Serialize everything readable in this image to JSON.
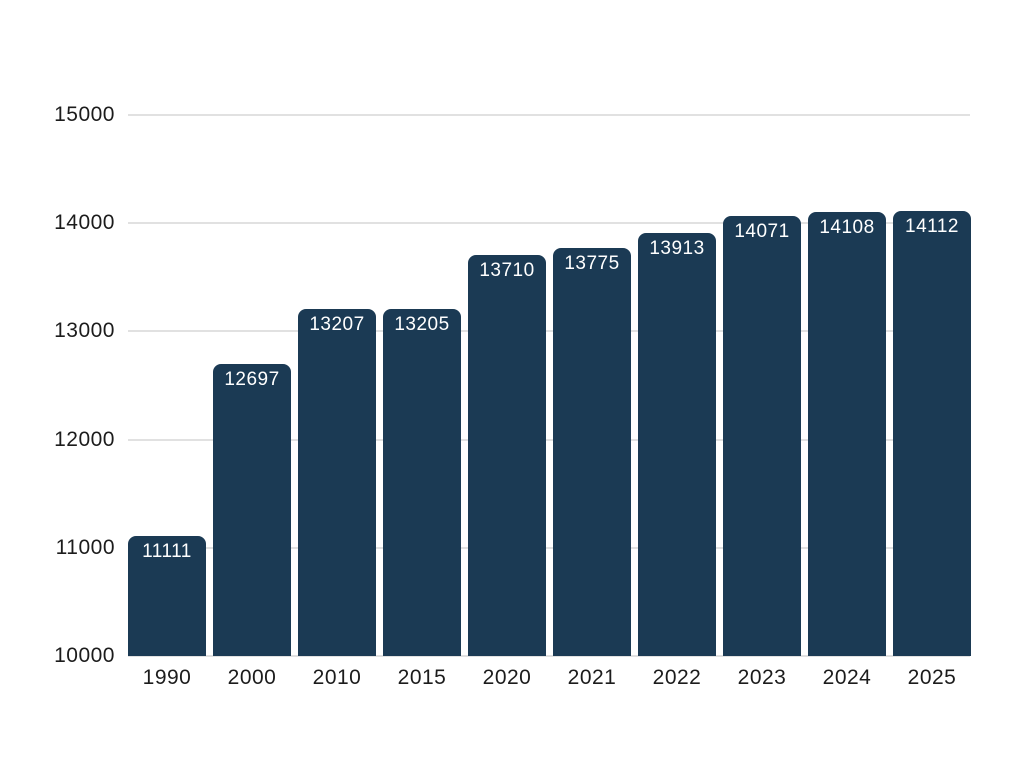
{
  "chart_data": {
    "type": "bar",
    "title": "",
    "subtitle": "",
    "xlabel": "",
    "ylabel": "",
    "categories": [
      "1990",
      "2000",
      "2010",
      "2015",
      "2020",
      "2021",
      "2022",
      "2023",
      "2024",
      "2025"
    ],
    "values": [
      11111,
      12697,
      13207,
      13205,
      13710,
      13775,
      13913,
      14071,
      14108,
      14112
    ],
    "data_labels": [
      "11111",
      "12697",
      "13207",
      "13205",
      "13710",
      "13775",
      "13913",
      "14071",
      "14108",
      "14112"
    ],
    "ylim": [
      10000,
      15000
    ],
    "yticks": [
      10000,
      11000,
      12000,
      13000,
      14000,
      15000
    ],
    "ytick_labels": [
      "10000",
      "11000",
      "12000",
      "13000",
      "14000",
      "15000"
    ],
    "grid": "horizontal",
    "legend": "none",
    "colors": {
      "bar": "#1b3a54",
      "bar_label": "#ffffff",
      "axis_text": "#1c1c1c",
      "gridline": "#e1e1e1",
      "background": "#ffffff"
    }
  }
}
